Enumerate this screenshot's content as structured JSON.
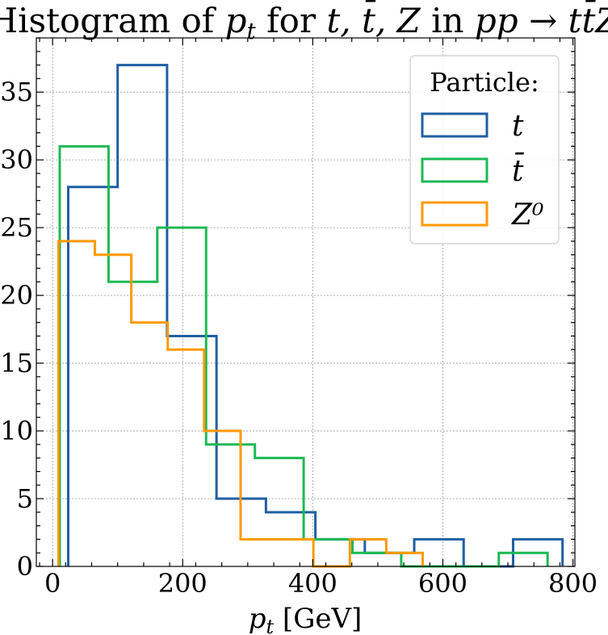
{
  "chart_data": {
    "type": "histogram",
    "title": "Histogram of p_t for t, t̄, Z in pp → tt̄Z",
    "title_parts": {
      "prefix": "Histogram of ",
      "var": "p",
      "var_sub": "t",
      "middle": " for ",
      "particles": "t, t̄, Z",
      "in_word": " in ",
      "process": "pp → tt̄Z"
    },
    "xlabel": "p_t [GeV]",
    "xlabel_parts": {
      "var": "p",
      "sub": "t",
      "unit": " [GeV]"
    },
    "ylabel": "",
    "xlim": [
      -25,
      803
    ],
    "ylim": [
      0,
      39
    ],
    "xticks": [
      0,
      200,
      400,
      600,
      800
    ],
    "yticks": [
      0,
      5,
      10,
      15,
      20,
      25,
      30,
      35
    ],
    "grid": true,
    "legend": {
      "title": "Particle:",
      "placement": "top-right"
    },
    "series": [
      {
        "name": "t",
        "color": "#1f5fa3",
        "edges": [
          24,
          100,
          176,
          252,
          328,
          404,
          480,
          556,
          632,
          708,
          784
        ],
        "counts": [
          28,
          37,
          17,
          5,
          4,
          2,
          1,
          2,
          0,
          2
        ]
      },
      {
        "name": "t̄",
        "color": "#1db954",
        "edges": [
          11,
          86,
          161,
          236,
          311,
          386,
          461,
          536,
          611,
          686,
          761
        ],
        "counts": [
          31,
          21,
          25,
          9,
          8,
          2,
          1,
          0,
          0,
          1
        ]
      },
      {
        "name": "Z⁰",
        "color": "#ff9a00",
        "edges": [
          9,
          65,
          121,
          177,
          233,
          289,
          345,
          401,
          457,
          513,
          569
        ],
        "counts": [
          24,
          23,
          18,
          16,
          10,
          2,
          2,
          0,
          2,
          1
        ]
      }
    ]
  }
}
